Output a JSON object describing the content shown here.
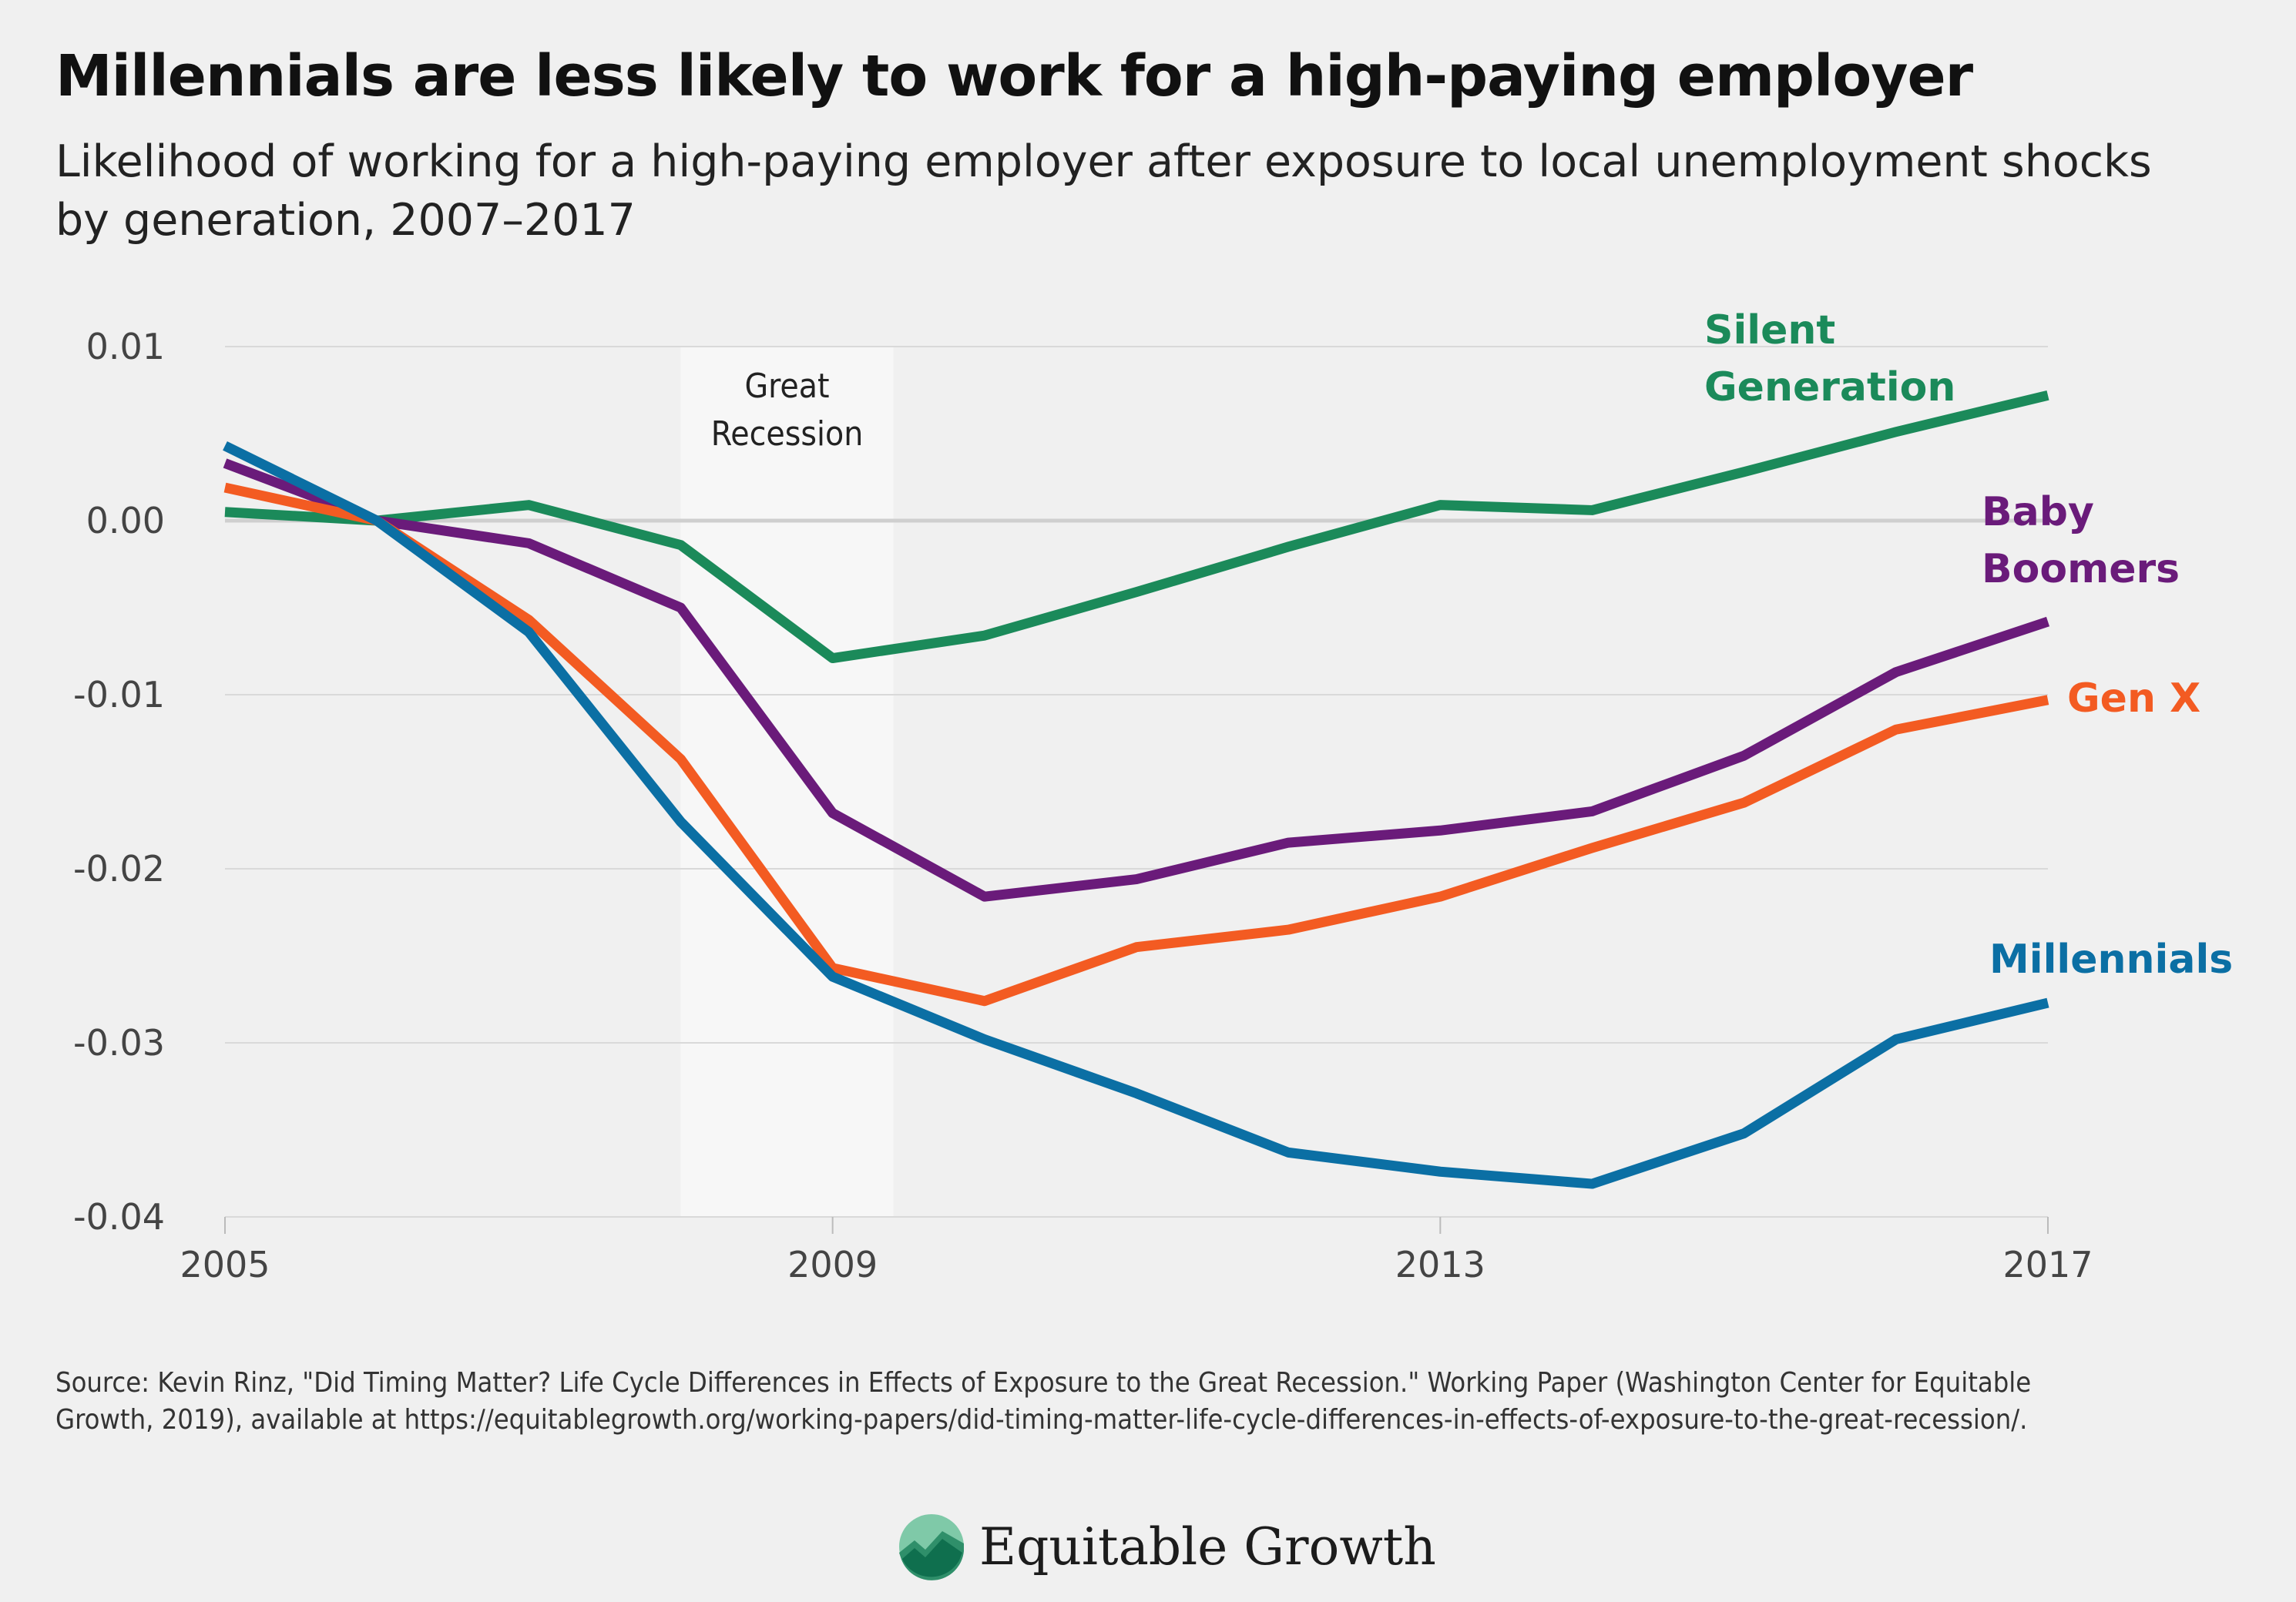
{
  "title": "Millennials are less likely to work for a high-paying employer",
  "subtitle": "Likelihood of working for a high-paying employer after exposure to local unemployment shocks by generation, 2007–2017",
  "source": "Source: Kevin Rinz, \"Did Timing Matter? Life Cycle Differences in Effects of Exposure to the Great Recession.\" Working Paper (Washington Center for Equitable Growth, 2019), available at https://equitablegrowth.org/working-papers/did-timing-matter-life-cycle-differences-in-effects-of-exposure-to-the-great-recession/.",
  "brand": {
    "name": "Equitable Growth",
    "logo_icon": "growth-chart-logo-icon"
  },
  "chart_data": {
    "type": "line",
    "xlim": [
      2005,
      2017
    ],
    "ylim": [
      -0.04,
      0.01
    ],
    "x_ticks": [
      {
        "value": 2005,
        "label": "2005"
      },
      {
        "value": 2009,
        "label": "2009"
      },
      {
        "value": 2013,
        "label": "2013"
      },
      {
        "value": 2017,
        "label": "2017"
      }
    ],
    "y_ticks": [
      {
        "value": 0.01,
        "label": "0.01"
      },
      {
        "value": 0.0,
        "label": "0.00"
      },
      {
        "value": -0.01,
        "label": "-0.01"
      },
      {
        "value": -0.02,
        "label": "-0.02"
      },
      {
        "value": -0.03,
        "label": "-0.03"
      },
      {
        "value": -0.04,
        "label": "-0.04"
      }
    ],
    "grid": true,
    "shaded_region": {
      "x0": 2008.0,
      "x1": 2009.4,
      "label_lines": [
        "Great",
        "Recession"
      ],
      "color": "#f7f7f7"
    },
    "x": [
      2005,
      2006,
      2007,
      2008,
      2009,
      2010,
      2011,
      2012,
      2013,
      2014,
      2015,
      2016,
      2017
    ],
    "series": [
      {
        "name": "Silent Generation",
        "label_lines": [
          "Silent",
          "Generation"
        ],
        "color": "#1b8a5a",
        "values": [
          0.0005,
          0.0,
          0.0009,
          -0.0014,
          -0.0079,
          -0.0066,
          -0.0041,
          -0.0015,
          0.0009,
          0.0006,
          0.0028,
          0.0051,
          0.0072
        ]
      },
      {
        "name": "Baby Boomers",
        "label_lines": [
          "Baby",
          "Boomers"
        ],
        "color": "#6a1b7a",
        "values": [
          0.0033,
          0.0,
          -0.0013,
          -0.005,
          -0.0168,
          -0.0216,
          -0.0206,
          -0.0185,
          -0.0178,
          -0.0167,
          -0.0135,
          -0.0087,
          -0.0058
        ]
      },
      {
        "name": "Gen X",
        "label_lines": [
          "Gen X"
        ],
        "color": "#f35b22",
        "values": [
          0.0019,
          0.0,
          -0.0057,
          -0.0137,
          -0.0257,
          -0.0276,
          -0.0245,
          -0.0235,
          -0.0216,
          -0.0188,
          -0.0162,
          -0.012,
          -0.0103
        ]
      },
      {
        "name": "Millennials",
        "label_lines": [
          "Millennials"
        ],
        "color": "#0b6fa4",
        "values": [
          0.0043,
          0.0,
          -0.0064,
          -0.0173,
          -0.0262,
          -0.0298,
          -0.0329,
          -0.0363,
          -0.0374,
          -0.0381,
          -0.0352,
          -0.0298,
          -0.0277
        ]
      }
    ]
  }
}
